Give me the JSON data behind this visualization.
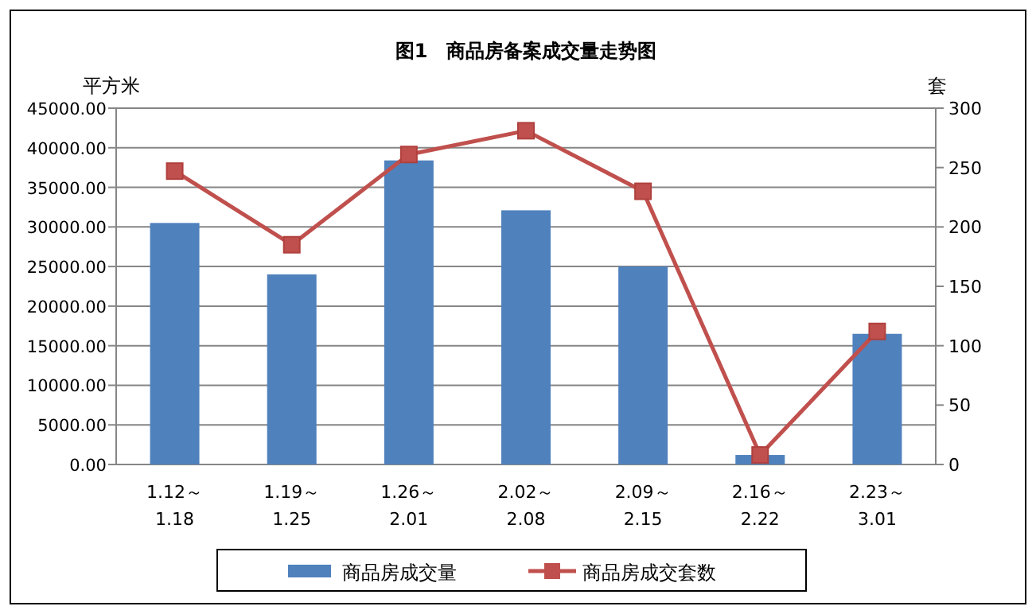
{
  "chart_data": {
    "type": "bar",
    "title": "图1　商品房备案成交量走势图",
    "ylabel": "平方米",
    "y2label": "套",
    "categories": [
      "1.12～1.18",
      "1.19～1.25",
      "1.26～2.01",
      "2.02～2.08",
      "2.09～2.15",
      "2.16～2.22",
      "2.23～3.01"
    ],
    "series": [
      {
        "name": "商品房成交量",
        "color": "#4f81bd",
        "values": [
          30500,
          24000,
          38400,
          32100,
          25000,
          1200,
          16500
        ]
      },
      {
        "name": "商品房成交套数",
        "type": "line",
        "axis": "y2",
        "color": "#c0504d",
        "marker": "square",
        "values": [
          247,
          185,
          261,
          281,
          230,
          8,
          112
        ]
      }
    ],
    "ylim": [
      0,
      45000
    ],
    "yticks": [
      {
        "value": 0,
        "label": "0.00"
      },
      {
        "value": 5000,
        "label": "5000.00"
      },
      {
        "value": 10000,
        "label": "10000.00"
      },
      {
        "value": 15000,
        "label": "15000.00"
      },
      {
        "value": 20000,
        "label": "20000.00"
      },
      {
        "value": 25000,
        "label": "25000.00"
      },
      {
        "value": 30000,
        "label": "30000.00"
      },
      {
        "value": 35000,
        "label": "35000.00"
      },
      {
        "value": 40000,
        "label": "40000.00"
      },
      {
        "value": 45000,
        "label": "45000.00"
      }
    ],
    "y2lim": [
      0,
      300
    ],
    "y2ticks": [
      0,
      50,
      100,
      150,
      200,
      250,
      300
    ],
    "grid": "y",
    "legend": "bottom"
  }
}
